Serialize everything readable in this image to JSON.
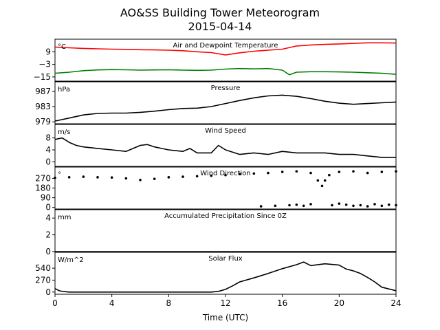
{
  "figure": {
    "title_line1": "AO&SS Building Tower Meteorogram",
    "title_line2": "2015-04-14",
    "xlabel": "Time (UTC)",
    "xticks": [
      "0",
      "4",
      "8",
      "12",
      "16",
      "20",
      "24"
    ]
  },
  "chart_data": [
    {
      "type": "line",
      "title": "Air and Dewpoint Temperature",
      "ylabel": "°C",
      "ylim": [
        -19,
        21
      ],
      "yticks": [
        -15,
        -3,
        9
      ],
      "xlim": [
        0,
        24
      ],
      "series": [
        {
          "color": "#ff0000",
          "x": [
            0,
            1,
            2,
            3,
            4,
            5,
            6,
            7,
            8,
            9,
            10,
            11,
            12,
            13,
            14,
            15,
            16,
            17,
            18,
            19,
            20,
            21,
            22,
            23,
            24
          ],
          "y": [
            13.5,
            12.8,
            12.2,
            11.8,
            11.5,
            11.3,
            11.0,
            10.8,
            10.5,
            10.0,
            9.0,
            8.2,
            6.0,
            8.0,
            9.5,
            10.5,
            11.5,
            14.5,
            15.5,
            16.0,
            16.5,
            17.0,
            17.5,
            17.5,
            17.3
          ]
        },
        {
          "color": "#008000",
          "x": [
            0,
            1,
            2,
            3,
            4,
            5,
            6,
            7,
            8,
            9,
            10,
            11,
            12,
            13,
            14,
            15,
            16,
            16.5,
            17,
            18,
            19,
            20,
            21,
            22,
            23,
            24
          ],
          "y": [
            -11.5,
            -10.5,
            -9.0,
            -8.3,
            -8.0,
            -8.2,
            -8.5,
            -8.3,
            -8.2,
            -8.5,
            -8.7,
            -8.5,
            -7.5,
            -7.0,
            -7.3,
            -7.0,
            -8.5,
            -13.0,
            -10.5,
            -10.0,
            -10.0,
            -10.2,
            -10.5,
            -11.0,
            -11.5,
            -12.5
          ]
        }
      ]
    },
    {
      "type": "line",
      "title": "Pressure",
      "ylabel": "hPa",
      "ylim": [
        978.5,
        989.5
      ],
      "yticks": [
        979,
        983,
        987
      ],
      "xlim": [
        0,
        24
      ],
      "series": [
        {
          "color": "#000000",
          "x": [
            0,
            1,
            2,
            3,
            4,
            5,
            6,
            7,
            8,
            9,
            10,
            11,
            12,
            13,
            14,
            15,
            16,
            17,
            18,
            19,
            20,
            21,
            22,
            23,
            24
          ],
          "y": [
            979.2,
            980.0,
            980.8,
            981.2,
            981.3,
            981.3,
            981.5,
            981.8,
            982.2,
            982.5,
            982.6,
            983.0,
            983.8,
            984.6,
            985.3,
            985.8,
            986.0,
            985.7,
            985.1,
            984.4,
            983.9,
            983.6,
            983.8,
            984.0,
            984.2
          ]
        }
      ]
    },
    {
      "type": "line",
      "title": "Wind Speed",
      "ylabel": "m/s",
      "ylim": [
        -1.5,
        12.5
      ],
      "yticks": [
        0,
        4,
        8
      ],
      "xlim": [
        0,
        24
      ],
      "series": [
        {
          "color": "#000000",
          "x": [
            0,
            0.5,
            1,
            1.5,
            2,
            3,
            4,
            5,
            5.5,
            6,
            6.5,
            7,
            7.5,
            8,
            9,
            9.5,
            10,
            11,
            11.5,
            12,
            13,
            14,
            15,
            16,
            17,
            18,
            19,
            20,
            21,
            22,
            23,
            24
          ],
          "y": [
            7.5,
            8.0,
            6.5,
            5.5,
            5.0,
            4.5,
            4.0,
            3.5,
            4.5,
            5.5,
            5.8,
            5.0,
            4.5,
            4.0,
            3.5,
            4.5,
            3.0,
            3.0,
            5.5,
            4.0,
            2.5,
            3.0,
            2.5,
            3.5,
            3.0,
            3.0,
            3.0,
            2.5,
            2.5,
            2.0,
            1.5,
            1.5
          ]
        }
      ]
    },
    {
      "type": "scatter",
      "title": "Wind Direction",
      "ylabel": "°",
      "ylim": [
        -15,
        375
      ],
      "yticks": [
        0,
        90,
        180,
        270
      ],
      "xlim": [
        0,
        24
      ],
      "series": [
        {
          "color": "#000000",
          "x": [
            0,
            1,
            2,
            3,
            4,
            5,
            6,
            7,
            8,
            9,
            10,
            11,
            12,
            13,
            14,
            15,
            16,
            17,
            18,
            18.5,
            18.8,
            19,
            19.3,
            20,
            21,
            22,
            23,
            24
          ],
          "y": [
            275,
            280,
            285,
            280,
            278,
            270,
            255,
            265,
            280,
            285,
            290,
            295,
            300,
            310,
            315,
            320,
            330,
            335,
            320,
            250,
            200,
            250,
            300,
            330,
            335,
            320,
            330,
            335
          ]
        },
        {
          "color": "#000000",
          "x": [
            14.5,
            15.5,
            16.5,
            17,
            17.5,
            18,
            19.5,
            20,
            20.5,
            21,
            21.5,
            22,
            22.5,
            23,
            23.5,
            24
          ],
          "y": [
            10,
            15,
            20,
            25,
            15,
            30,
            20,
            35,
            25,
            15,
            20,
            10,
            30,
            15,
            25,
            20
          ]
        }
      ]
    },
    {
      "type": "line",
      "title": "Accumulated Precipitation Since 0Z",
      "ylabel": "mm",
      "ylim": [
        0,
        5
      ],
      "yticks": [
        0,
        2,
        4
      ],
      "xlim": [
        0,
        24
      ],
      "series": [
        {
          "color": "#000000",
          "x": [
            0,
            24
          ],
          "y": [
            0,
            0
          ]
        }
      ]
    },
    {
      "type": "line",
      "title": "Solar Flux",
      "ylabel": "W/m^2",
      "ylim": [
        -50,
        900
      ],
      "yticks": [
        0,
        270,
        540
      ],
      "xlim": [
        0,
        24
      ],
      "series": [
        {
          "color": "#000000",
          "x": [
            0,
            0.3,
            0.6,
            1,
            2,
            4,
            6,
            8,
            10,
            11,
            11.5,
            12,
            12.5,
            13,
            14,
            15,
            16,
            17,
            17.5,
            18,
            19,
            20,
            20.5,
            21,
            21.5,
            22,
            22.5,
            23,
            23.5,
            24
          ],
          "y": [
            80,
            30,
            10,
            0,
            0,
            0,
            0,
            0,
            0,
            0,
            15,
            60,
            140,
            230,
            320,
            420,
            530,
            620,
            680,
            600,
            640,
            610,
            520,
            480,
            420,
            330,
            230,
            110,
            70,
            30
          ]
        }
      ]
    }
  ]
}
